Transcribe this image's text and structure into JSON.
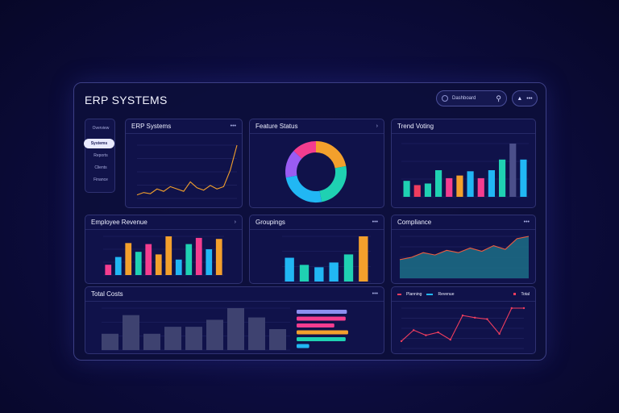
{
  "app": {
    "title": "ERP SYSTEMS"
  },
  "header": {
    "search_value": "Dashboard",
    "search_icon": "magnifier-icon",
    "user_icon": "user-icon",
    "user_menu": "•••"
  },
  "sidebar": {
    "items": [
      {
        "label": "Overview",
        "active": false
      },
      {
        "label": "Systems",
        "active": true
      },
      {
        "label": "Reports",
        "active": false
      },
      {
        "label": "Clients",
        "active": false
      },
      {
        "label": "Finance",
        "active": false
      }
    ]
  },
  "panels": {
    "erp_systems": {
      "title": "ERP Systems",
      "menu": "•••"
    },
    "donut": {
      "title": "Feature Status",
      "menu": "›"
    },
    "bars_top_right": {
      "title": "Trend Voting",
      "menu": ""
    },
    "employee": {
      "title": "Employee Revenue",
      "menu": "›"
    },
    "groupings": {
      "title": "Groupings",
      "menu": "•••"
    },
    "compliance": {
      "title": "Compliance",
      "menu": "•••"
    },
    "total_costs": {
      "title": "Total Costs",
      "menu": "•••"
    },
    "line_small": {
      "title": "",
      "legend": [
        "Planning",
        "Revenue",
        "Total"
      ],
      "menu": "•••"
    }
  },
  "colors": {
    "accent": "#f3a02c",
    "teal": "#1fd1b2",
    "cyan": "#21b7f4",
    "pink": "#f43d8f",
    "purple": "#9a5cf2",
    "red": "#ef3d5e",
    "bg": "#0c0c3c"
  },
  "chart_data": [
    {
      "type": "line",
      "panel": "erp_systems",
      "values": [
        3,
        5,
        4,
        8,
        6,
        10,
        8,
        6,
        14,
        9,
        7,
        11,
        8,
        10,
        24,
        45
      ]
    },
    {
      "type": "pie",
      "panel": "donut",
      "series": [
        {
          "color": "#f3a02c",
          "value": 22
        },
        {
          "color": "#1fd1b2",
          "value": 25
        },
        {
          "color": "#21b7f4",
          "value": 25
        },
        {
          "color": "#9a5cf2",
          "value": 15
        },
        {
          "color": "#f43d8f",
          "value": 13
        }
      ]
    },
    {
      "type": "bar",
      "panel": "bars_top_right",
      "values": [
        30,
        22,
        25,
        50,
        35,
        40,
        48,
        35,
        50,
        70,
        100,
        70
      ],
      "colors": [
        "#1fd1b2",
        "#ef3d5e",
        "#1fd1b2",
        "#1fd1b2",
        "#f43d8f",
        "#f3a02c",
        "#21b7f4",
        "#f43d8f",
        "#21b7f4",
        "#1fd1b2",
        "#4b4f8a",
        "#21b7f4"
      ]
    },
    {
      "type": "bar",
      "panel": "employee",
      "values": [
        20,
        35,
        62,
        45,
        60,
        40,
        75,
        30,
        60,
        72,
        50,
        70
      ],
      "colors": [
        "#f43d8f",
        "#21b7f4",
        "#f3a02c",
        "#1fd1b2",
        "#f43d8f",
        "#f3a02c",
        "#f3a02c",
        "#21b7f4",
        "#1fd1b2",
        "#f43d8f",
        "#21b7f4",
        "#f3a02c"
      ]
    },
    {
      "type": "bar",
      "panel": "groupings",
      "values": [
        50,
        35,
        30,
        40,
        57,
        95
      ],
      "colors": [
        "#21b7f4",
        "#1fd1b2",
        "#21b7f4",
        "#21b7f4",
        "#1fd1b2",
        "#f3a02c"
      ]
    },
    {
      "type": "area",
      "panel": "compliance",
      "values": [
        40,
        45,
        55,
        50,
        60,
        55,
        65,
        58,
        70,
        62,
        85,
        90
      ]
    },
    {
      "type": "bar",
      "panel": "total_costs",
      "values": [
        35,
        75,
        35,
        50,
        50,
        65,
        90,
        70,
        45
      ],
      "hbars": [
        {
          "value": 80,
          "color": "#8c8ff0"
        },
        {
          "value": 78,
          "color": "#f43d8f"
        },
        {
          "value": 60,
          "color": "#f43d8f"
        },
        {
          "value": 82,
          "color": "#f3a02c"
        },
        {
          "value": 78,
          "color": "#1fd1b2"
        },
        {
          "value": 20,
          "color": "#21b7f4"
        }
      ]
    },
    {
      "type": "line",
      "panel": "line_small",
      "values": [
        10,
        25,
        18,
        22,
        12,
        45,
        42,
        40,
        20,
        55,
        55
      ]
    }
  ]
}
